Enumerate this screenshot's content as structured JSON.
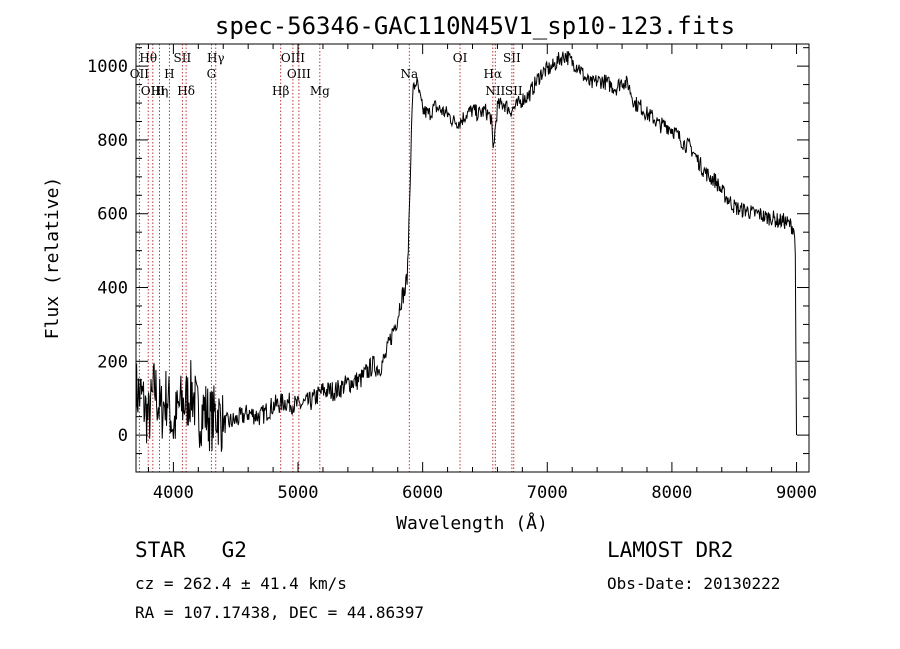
{
  "chart_data": {
    "type": "line",
    "title": "spec-56346-GAC110N45V1_sp10-123.fits",
    "xlabel": "Wavelength (Å)",
    "ylabel": "Flux (relative)",
    "xlim": [
      3700,
      9100
    ],
    "ylim": [
      -100,
      1060
    ],
    "xticks": [
      4000,
      5000,
      6000,
      7000,
      8000,
      9000
    ],
    "yticks": [
      0,
      200,
      400,
      600,
      800,
      1000
    ],
    "grid": false,
    "legend": "none",
    "line_color": "#000000",
    "marker_color": "#b22222",
    "series": [
      {
        "x": [
          3700,
          3750,
          3800,
          3850,
          3900,
          3950,
          4000,
          4050,
          4100,
          4150,
          4200,
          4250,
          4300,
          4350,
          4400,
          4500,
          4600,
          4700,
          4800,
          4900,
          5000,
          5100,
          5200,
          5300,
          5400,
          5500,
          5600,
          5650,
          5700,
          5750,
          5780,
          5800,
          5820,
          5840,
          5860,
          5880,
          5900,
          5920,
          5950,
          6000,
          6050,
          6100,
          6150,
          6200,
          6250,
          6300,
          6350,
          6400,
          6450,
          6500,
          6550,
          6565,
          6600,
          6650,
          6700,
          6750,
          6800,
          6850,
          6900,
          6950,
          7000,
          7050,
          7100,
          7150,
          7200,
          7250,
          7300,
          7350,
          7400,
          7450,
          7500,
          7550,
          7600,
          7650,
          7700,
          7750,
          7800,
          7850,
          7900,
          7950,
          8000,
          8050,
          8100,
          8150,
          8200,
          8250,
          8300,
          8350,
          8400,
          8450,
          8500,
          8550,
          8600,
          8650,
          8700,
          8750,
          8800,
          8850,
          8900,
          8950,
          8980,
          8990,
          9000
        ],
        "y": [
          120,
          100,
          40,
          130,
          60,
          110,
          20,
          80,
          90,
          120,
          50,
          70,
          40,
          60,
          30,
          40,
          60,
          50,
          80,
          90,
          80,
          90,
          120,
          120,
          140,
          150,
          190,
          180,
          210,
          270,
          300,
          320,
          360,
          380,
          390,
          450,
          700,
          930,
          960,
          880,
          870,
          890,
          880,
          870,
          850,
          850,
          870,
          880,
          870,
          880,
          860,
          770,
          890,
          900,
          880,
          890,
          910,
          920,
          950,
          980,
          990,
          1000,
          1020,
          1030,
          1010,
          1000,
          970,
          950,
          960,
          960,
          950,
          940,
          960,
          950,
          900,
          890,
          870,
          860,
          840,
          840,
          830,
          810,
          790,
          780,
          750,
          720,
          700,
          690,
          660,
          640,
          620,
          610,
          610,
          600,
          600,
          590,
          590,
          580,
          580,
          570,
          560,
          490,
          0
        ]
      }
    ],
    "line_markers": [
      {
        "label": "Hθ",
        "x": 3798,
        "row": 1
      },
      {
        "label": "OII",
        "x": 3727,
        "row": 2
      },
      {
        "label": "OIII",
        "x": 3835,
        "row": 3
      },
      {
        "label": "Hη",
        "x": 3889,
        "row": 3
      },
      {
        "label": "SII",
        "x": 4072,
        "row": 1
      },
      {
        "label": "H",
        "x": 3968,
        "row": 2
      },
      {
        "label": "Hδ",
        "x": 4102,
        "row": 3
      },
      {
        "label": "Hγ",
        "x": 4340,
        "row": 1
      },
      {
        "label": "G",
        "x": 4305,
        "row": 2
      },
      {
        "label": "Hβ",
        "x": 4861,
        "row": 3
      },
      {
        "label": "OIII",
        "x": 4959,
        "row": 1
      },
      {
        "label": "OIII",
        "x": 5007,
        "row": 2
      },
      {
        "label": "Mg",
        "x": 5175,
        "row": 3
      },
      {
        "label": "Na",
        "x": 5893,
        "row": 2
      },
      {
        "label": "OI",
        "x": 6300,
        "row": 1
      },
      {
        "label": "Hα",
        "x": 6563,
        "row": 2
      },
      {
        "label": "SII",
        "x": 6716,
        "row": 1
      },
      {
        "label": "NII",
        "x": 6583,
        "row": 3
      },
      {
        "label": "SII",
        "x": 6731,
        "row": 3
      }
    ]
  },
  "info": {
    "object_class": "STAR",
    "subclass": "G2",
    "redshift_line": "cz = 262.4 ± 41.4 km/s",
    "coords_line": "RA = 107.17438, DEC =  44.86397",
    "survey": "LAMOST DR2",
    "obs_date": "Obs-Date: 20130222"
  }
}
